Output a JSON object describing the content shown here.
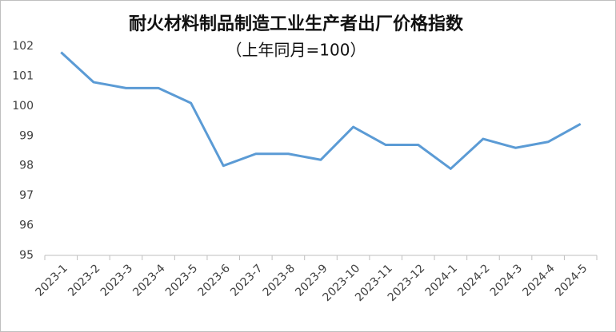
{
  "chart_data": {
    "type": "line",
    "title": "耐火材料制品制造工业生产者出厂价格指数",
    "subtitle": "（上年同月=100）",
    "categories": [
      "2023-1",
      "2023-2",
      "2023-3",
      "2023-4",
      "2023-5",
      "2023-6",
      "2023-7",
      "2023-8",
      "2023-9",
      "2023-10",
      "2023-11",
      "2023-12",
      "2024-1",
      "2024-2",
      "2024-3",
      "2024-4",
      "2024-5"
    ],
    "series": [
      {
        "color": "#5b9bd5",
        "values": [
          101.8,
          100.8,
          100.6,
          100.6,
          100.1,
          98.0,
          98.4,
          98.4,
          98.2,
          99.3,
          98.7,
          98.7,
          97.9,
          98.9,
          98.6,
          98.8,
          99.4
        ]
      }
    ],
    "ylim": [
      95,
      102
    ],
    "yticks": [
      95,
      96,
      97,
      98,
      99,
      100,
      101,
      102
    ],
    "grid": false
  }
}
